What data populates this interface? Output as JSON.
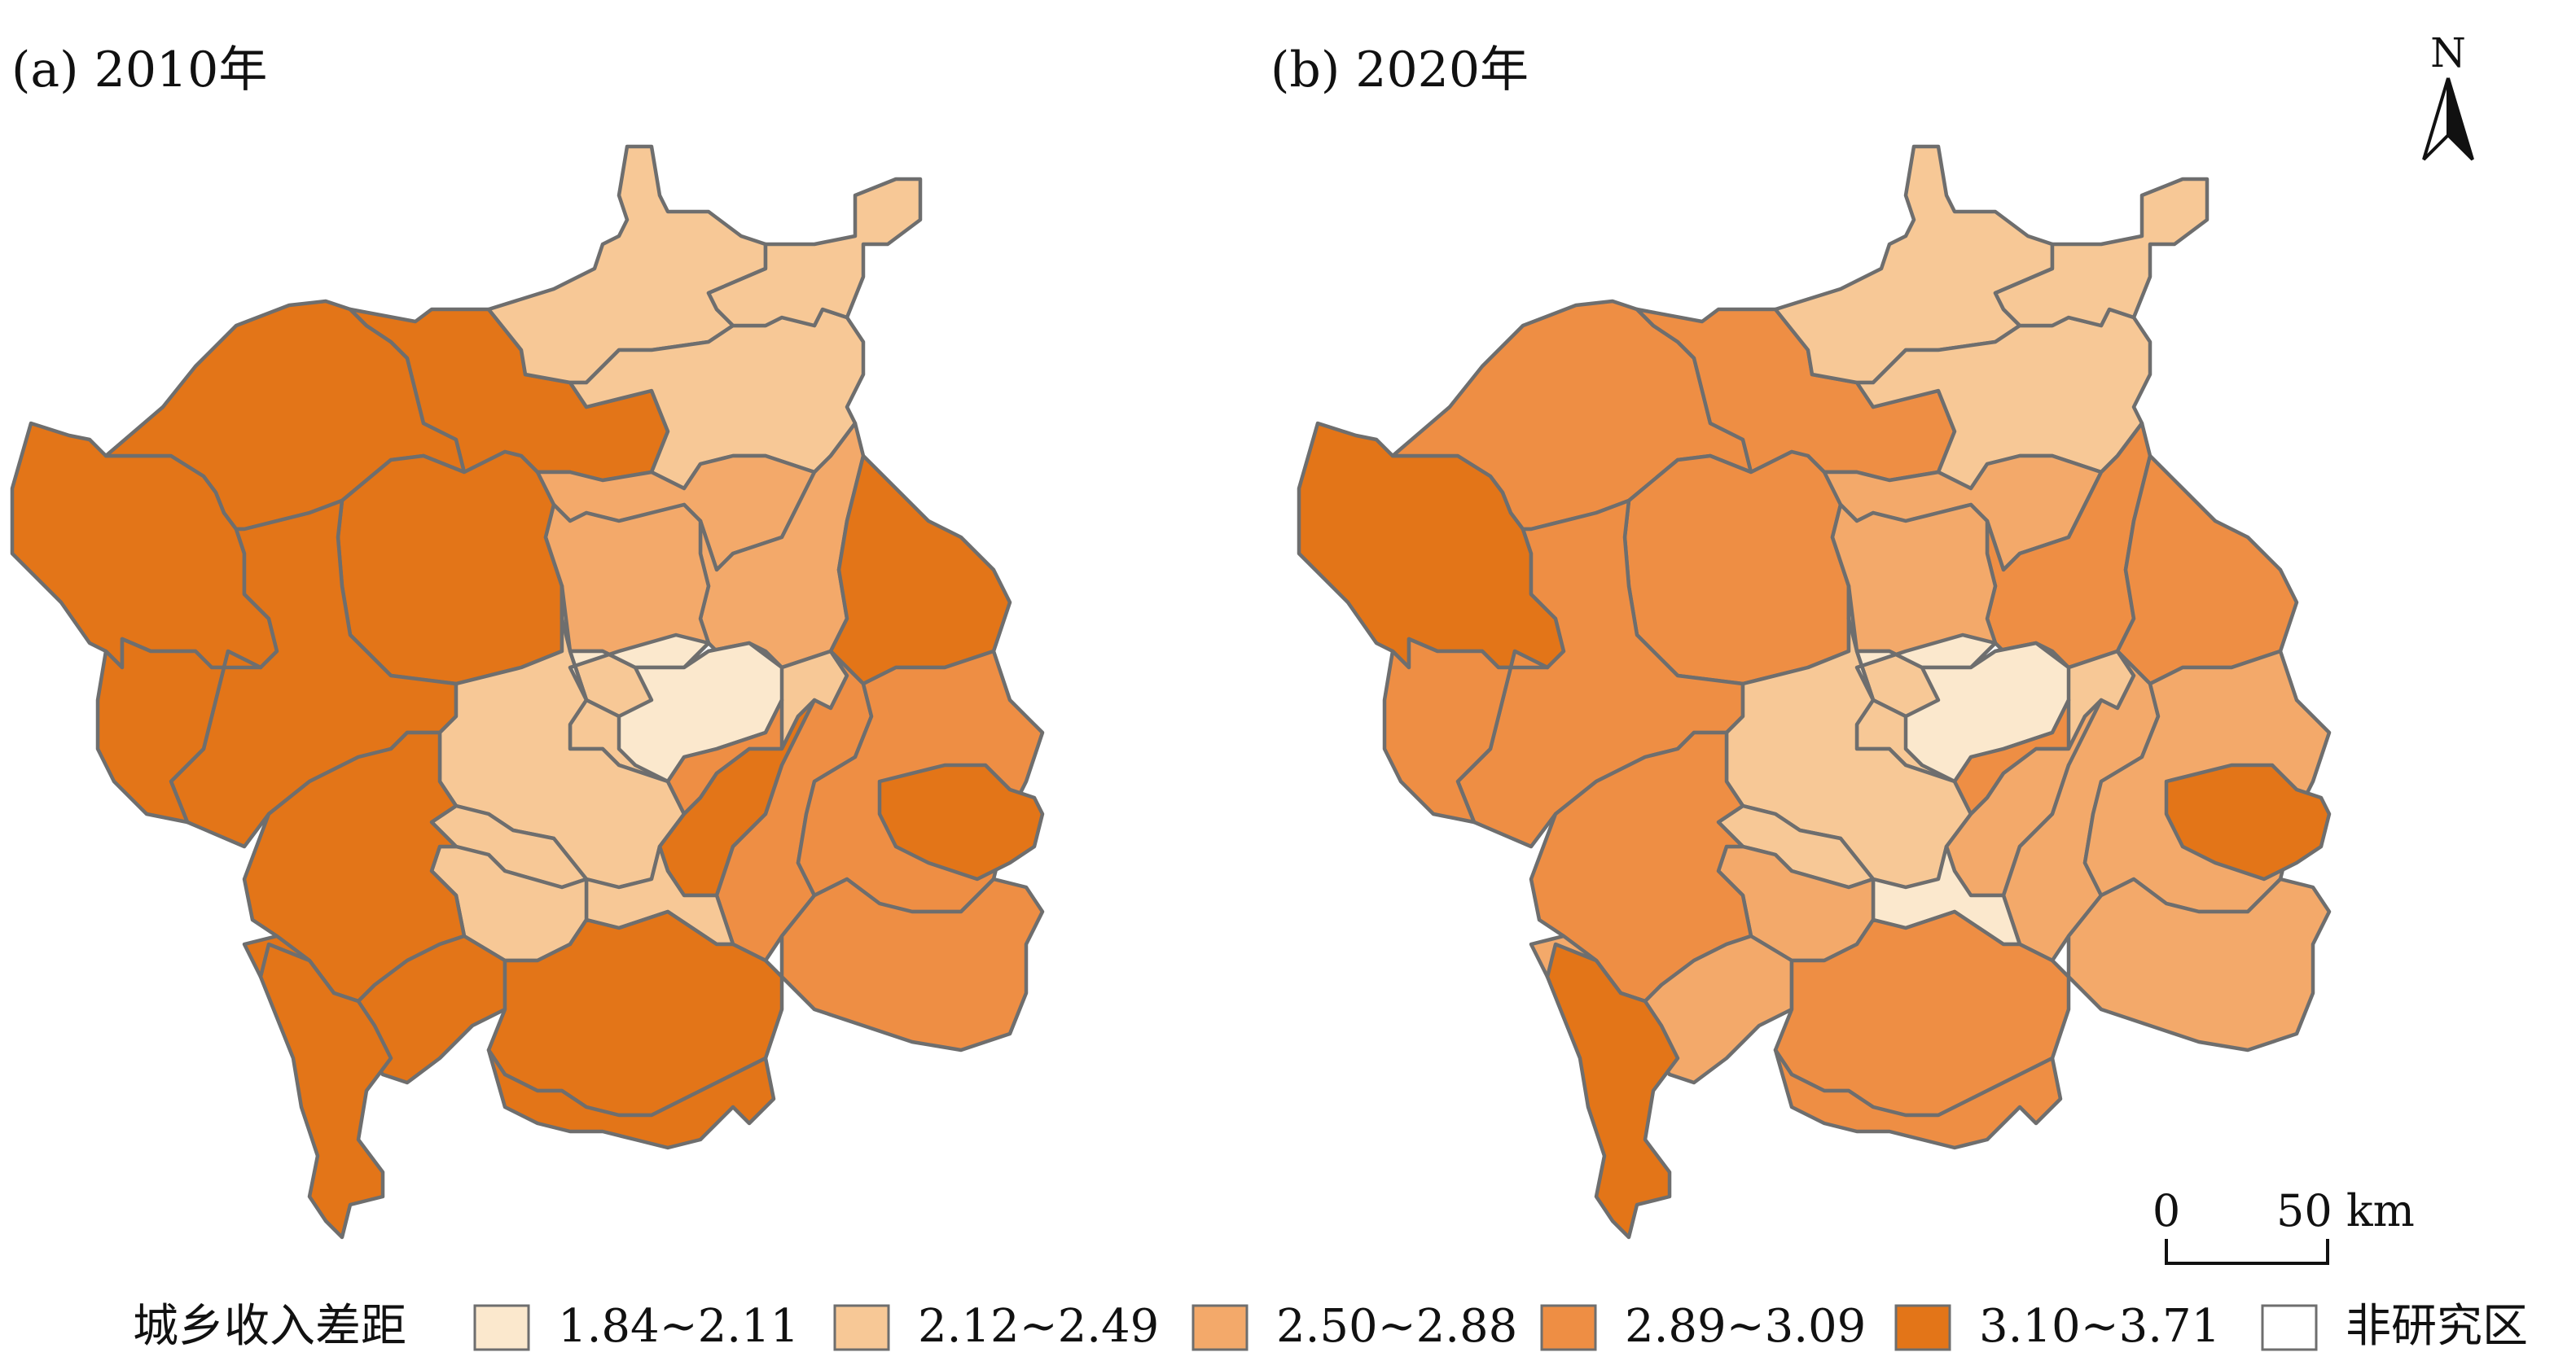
{
  "panels": [
    {
      "title": "(a) 2010年"
    },
    {
      "title": "(b) 2020年"
    }
  ],
  "north_arrow": {
    "label": "N",
    "icon": "north-arrow-icon"
  },
  "scale_bar": {
    "start_label": "0",
    "end_label": "50 km",
    "distance_km": 50
  },
  "legend": {
    "title": "城乡收入差距",
    "classes": [
      {
        "label": "1.84~2.11",
        "color": "#fbe8cd"
      },
      {
        "label": "2.12~2.49",
        "color": "#f7c896"
      },
      {
        "label": "2.50~2.88",
        "color": "#f3a96a"
      },
      {
        "label": "2.89~3.09",
        "color": "#ee8e44"
      },
      {
        "label": "3.10~3.71",
        "color": "#e37518"
      },
      {
        "label": "非研究区",
        "color": "#ffffff"
      }
    ]
  },
  "boundary_color": "#6e6e6e",
  "map_data": {
    "region_classes_2010": [
      4,
      4,
      4,
      4,
      1,
      1,
      1,
      2,
      2,
      4,
      2,
      1,
      1,
      4,
      4,
      1,
      1,
      0,
      0,
      3,
      4,
      3,
      1,
      1,
      4,
      3,
      4,
      3,
      4,
      4
    ],
    "region_classes_2020": [
      4,
      3,
      3,
      3,
      1,
      1,
      1,
      2,
      3,
      3,
      2,
      1,
      1,
      3,
      3,
      1,
      1,
      0,
      0,
      3,
      2,
      2,
      0,
      2,
      3,
      2,
      4,
      2,
      2,
      3
    ]
  }
}
